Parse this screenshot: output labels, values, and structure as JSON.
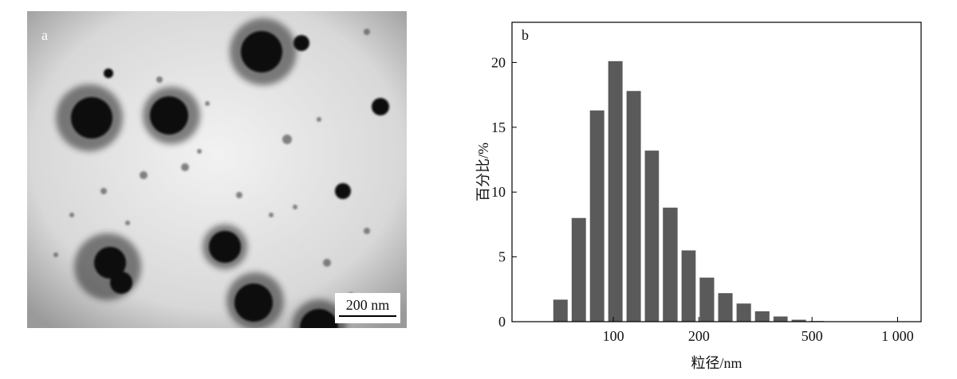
{
  "panel_a": {
    "label": "a",
    "scale_bar": "200 nm"
  },
  "chart_data": {
    "type": "histogram",
    "panel_label": "b",
    "xlabel": "粒径/nm",
    "ylabel": "百分比/%",
    "bins": [
      60.5,
      70.2,
      81.4,
      94.4,
      109.5,
      127,
      147,
      171,
      198,
      230,
      267,
      310,
      360,
      417,
      484,
      561
    ],
    "values": [
      1.7,
      8.0,
      16.3,
      20.1,
      17.8,
      13.2,
      8.8,
      5.5,
      3.4,
      2.2,
      1.4,
      0.8,
      0.4,
      0.15,
      0.05
    ],
    "color": "#5a5a5a",
    "xscale": "log",
    "xlim": [
      44,
      1210
    ],
    "xticks": [
      100,
      200,
      500,
      {
        "value": 1000,
        "label": "1 000"
      }
    ],
    "ylim": [
      0,
      23.1
    ],
    "yticks": [
      0,
      5,
      10,
      15,
      20
    ]
  }
}
